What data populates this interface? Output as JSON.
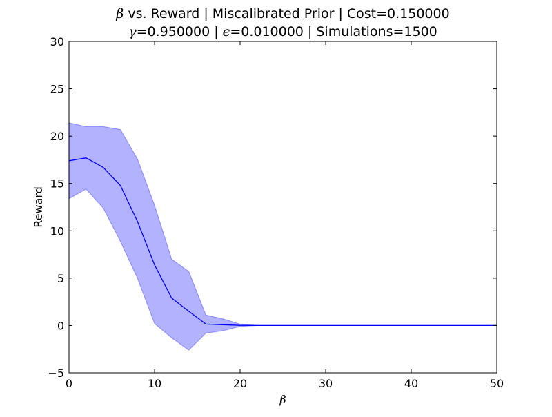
{
  "chart_data": {
    "type": "line",
    "title": {
      "line1": {
        "symbol": "β",
        "text": " vs. Reward | Miscalibrated Prior | Cost=0.150000"
      },
      "line2": {
        "gamma_symbol": "γ",
        "gamma_text": "=0.950000 | ",
        "epsilon_symbol": "ϵ",
        "epsilon_text": "=0.010000 | Simulations=1500"
      }
    },
    "xlabel": "β",
    "ylabel": "Reward",
    "xlim": [
      0,
      50
    ],
    "ylim": [
      -5,
      30
    ],
    "xticks": [
      0,
      10,
      20,
      30,
      40,
      50
    ],
    "yticks": [
      -5,
      0,
      5,
      10,
      15,
      20,
      25,
      30
    ],
    "grid": false,
    "legend": "none",
    "colors": {
      "line": "#0000ff",
      "band": "#0000ff",
      "axes": "#000000",
      "background": "#ffffff"
    },
    "band_opacity": 0.3,
    "series": [
      {
        "x": [
          0,
          2,
          4,
          6,
          8,
          10,
          12,
          14,
          16,
          18,
          20,
          22,
          24,
          26,
          28,
          30,
          32,
          34,
          36,
          38,
          40,
          42,
          44,
          46,
          48,
          50
        ],
        "values": [
          17.4,
          17.7,
          16.7,
          14.8,
          11.0,
          6.4,
          2.9,
          1.5,
          0.15,
          0.08,
          0.02,
          0,
          0,
          0,
          0,
          0,
          0,
          0,
          0,
          0,
          0,
          0,
          0,
          0,
          0,
          0
        ],
        "upper": [
          21.4,
          21.0,
          21.0,
          20.7,
          17.6,
          12.7,
          7.0,
          5.7,
          1.1,
          0.7,
          0.15,
          0,
          0,
          0,
          0,
          0,
          0,
          0,
          0,
          0,
          0,
          0,
          0,
          0,
          0,
          0
        ],
        "lower": [
          13.4,
          14.4,
          12.4,
          8.9,
          5.0,
          0.2,
          -1.3,
          -2.6,
          -0.8,
          -0.55,
          -0.1,
          0,
          0,
          0,
          0,
          0,
          0,
          0,
          0,
          0,
          0,
          0,
          0,
          0,
          0,
          0
        ]
      }
    ]
  }
}
